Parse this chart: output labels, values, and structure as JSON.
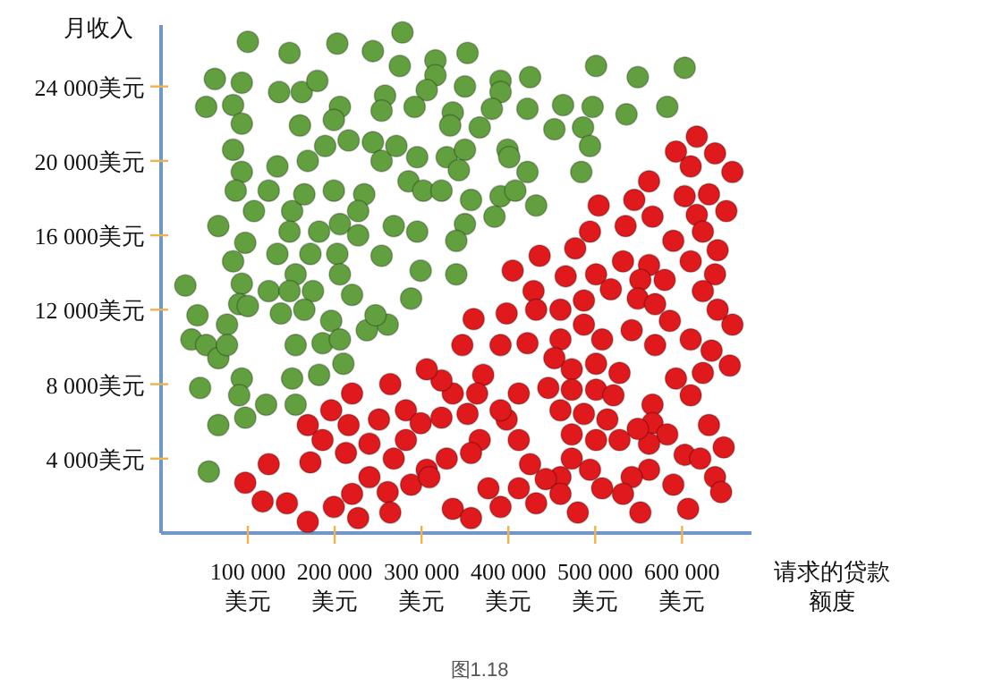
{
  "chart_data": {
    "type": "scatter",
    "xlabel": "请求的贷款额度",
    "ylabel": "月收入",
    "xlim": [
      0,
      680000
    ],
    "ylim": [
      0,
      27300
    ],
    "xticks": [
      {
        "value": 100000,
        "label": "100 000\n美元"
      },
      {
        "value": 200000,
        "label": "200 000\n美元"
      },
      {
        "value": 300000,
        "label": "300 000\n美元"
      },
      {
        "value": 400000,
        "label": "400 000\n美元"
      },
      {
        "value": 500000,
        "label": "500 000\n美元"
      },
      {
        "value": 600000,
        "label": "600 000\n美元"
      }
    ],
    "yticks": [
      {
        "value": 4000,
        "label": "4 000美元"
      },
      {
        "value": 8000,
        "label": "8 000美元"
      },
      {
        "value": 12000,
        "label": "12 000美元"
      },
      {
        "value": 16000,
        "label": "16 000美元"
      },
      {
        "value": 20000,
        "label": "20 000美元"
      },
      {
        "value": 24000,
        "label": "24 000美元"
      }
    ],
    "marker": "circle",
    "annotations": [
      "图1.18"
    ],
    "series": [
      {
        "color": "#62a03f",
        "x": [
          100000,
          148000,
          203000,
          244000,
          278000,
          353000,
          501000,
          549000,
          603000,
          62000,
          93000,
          52000,
          83000,
          93000,
          136000,
          162000,
          180000,
          160000,
          206000,
          199000,
          275000,
          316000,
          316000,
          306000,
          350000,
          391000,
          391000,
          425000,
          422000,
          463000,
          497000,
          453000,
          486000,
          536000,
          583000,
          258000,
          254000,
          292000,
          336000,
          333000,
          367000,
          381000,
          399000,
          401000,
          494000,
          484000,
          422000,
          432000,
          83000,
          93000,
          86000,
          134000,
          124000,
          169000,
          189000,
          216000,
          244000,
          254000,
          271000,
          295000,
          329000,
          350000,
          343000,
          285000,
          302000,
          323000,
          357000,
          391000,
          408000,
          384000,
          350000,
          340000,
          107000,
          151000,
          165000,
          199000,
          206000,
          182000,
          234000,
          227000,
          227000,
          268000,
          295000,
          299000,
          340000,
          254000,
          288000,
          66000,
          97000,
          83000,
          93000,
          134000,
          172000,
          203000,
          148000,
          155000,
          206000,
          28000,
          42000,
          35000,
          52000,
          66000,
          76000,
          90000,
          76000,
          100000,
          124000,
          148000,
          175000,
          165000,
          138000,
          196000,
          220000,
          261000,
          237000,
          247000,
          186000,
          206000,
          155000,
          182000,
          210000,
          45000,
          93000,
          90000,
          97000,
          66000,
          121000,
          151000,
          155000,
          55000
        ],
        "values": [
          26400,
          25800,
          26300,
          25900,
          26900,
          25800,
          25100,
          24500,
          25000,
          24400,
          24200,
          22900,
          23000,
          22000,
          23700,
          23700,
          24300,
          21900,
          22900,
          22200,
          25100,
          25400,
          24600,
          23800,
          24000,
          24300,
          23700,
          24500,
          22800,
          23000,
          22900,
          21700,
          21800,
          22500,
          22900,
          23500,
          22700,
          22900,
          22600,
          21900,
          21800,
          22800,
          20600,
          20200,
          20800,
          19400,
          19400,
          17600,
          20600,
          19400,
          18400,
          19700,
          18400,
          20000,
          20800,
          21100,
          21000,
          20000,
          20800,
          20200,
          20200,
          20600,
          19500,
          18900,
          18400,
          18400,
          17900,
          18100,
          18400,
          17000,
          16600,
          15700,
          17300,
          17300,
          18200,
          18400,
          16600,
          16200,
          18200,
          17300,
          16000,
          16500,
          16200,
          14100,
          13900,
          14900,
          12600,
          16500,
          15600,
          14600,
          13400,
          15000,
          15000,
          15000,
          16200,
          13900,
          13900,
          13300,
          11700,
          10400,
          10100,
          9400,
          11200,
          12300,
          10100,
          12200,
          13000,
          13000,
          13000,
          12000,
          11800,
          11400,
          12800,
          11200,
          10900,
          11700,
          10200,
          10400,
          10100,
          8500,
          9100,
          7800,
          8300,
          7400,
          6200,
          5800,
          6900,
          8300,
          6900,
          3300
        ]
      },
      {
        "color": "#e0191c",
        "x": [
          617000,
          638000,
          658000,
          593000,
          610000,
          562000,
          545000,
          504000,
          603000,
          631000,
          651000,
          617000,
          566000,
          535000,
          494000,
          624000,
          641000,
          590000,
          610000,
          638000,
          658000,
          436000,
          477000,
          532000,
          562000,
          580000,
          552000,
          501000,
          466000,
          405000,
          429000,
          398000,
          432000,
          460000,
          487000,
          518000,
          549000,
          569000,
          586000,
          624000,
          641000,
          360000,
          347000,
          391000,
          422000,
          460000,
          487000,
          508000,
          542000,
          569000,
          610000,
          634000,
          655000,
          624000,
          593000,
          610000,
          453000,
          473000,
          501000,
          528000,
          446000,
          473000,
          501000,
          521000,
          566000,
          566000,
          583000,
          631000,
          648000,
          603000,
          621000,
          638000,
          645000,
          607000,
          590000,
          562000,
          542000,
          562000,
          549000,
          514000,
          487000,
          460000,
          473000,
          501000,
          528000,
          473000,
          494000,
          460000,
          443000,
          425000,
          412000,
          398000,
          412000,
          391000,
          371000,
          364000,
          336000,
          323000,
          306000,
          264000,
          220000,
          196000,
          169000,
          216000,
          251000,
          282000,
          299000,
          323000,
          353000,
          367000,
          357000,
          329000,
          306000,
          282000,
          268000,
          240000,
          213000,
          186000,
          172000,
          124000,
          97000,
          117000,
          145000,
          169000,
          199000,
          220000,
          240000,
          261000,
          288000,
          309000,
          336000,
          357000,
          377000,
          391000,
          412000,
          432000,
          460000,
          480000,
          508000,
          532000,
          552000,
          227000,
          264000
        ],
        "values": [
          21300,
          20400,
          19400,
          20500,
          19700,
          18900,
          17900,
          17600,
          18100,
          18200,
          17300,
          17100,
          17000,
          16500,
          16200,
          16200,
          15200,
          15700,
          14600,
          13900,
          11200,
          14900,
          15300,
          14600,
          14400,
          13600,
          13600,
          13900,
          13800,
          14100,
          13000,
          11800,
          12000,
          12000,
          12500,
          13100,
          12600,
          12300,
          11400,
          13000,
          12000,
          11500,
          10100,
          10100,
          10200,
          10400,
          11200,
          10400,
          10900,
          10100,
          10400,
          9800,
          9000,
          8600,
          8300,
          7400,
          9400,
          8800,
          9100,
          8600,
          7800,
          7700,
          7700,
          7400,
          6900,
          5900,
          5300,
          5800,
          4600,
          4200,
          4000,
          3000,
          2200,
          1300,
          2600,
          3400,
          3000,
          4800,
          5600,
          6100,
          6400,
          6600,
          5300,
          5000,
          5000,
          4000,
          3400,
          3000,
          2900,
          3700,
          5000,
          6100,
          7500,
          6600,
          8500,
          7500,
          7500,
          8200,
          8800,
          8000,
          7500,
          6600,
          5800,
          5800,
          6100,
          6600,
          5900,
          6200,
          6400,
          5000,
          4300,
          4000,
          3400,
          5000,
          4000,
          4800,
          4300,
          5000,
          3800,
          3700,
          2700,
          1700,
          1600,
          600,
          1400,
          2100,
          3000,
          2200,
          2600,
          3000,
          1300,
          800,
          2400,
          1400,
          2400,
          1600,
          2100,
          1100,
          2400,
          2100,
          1100,
          800,
          1100
        ]
      }
    ]
  }
}
